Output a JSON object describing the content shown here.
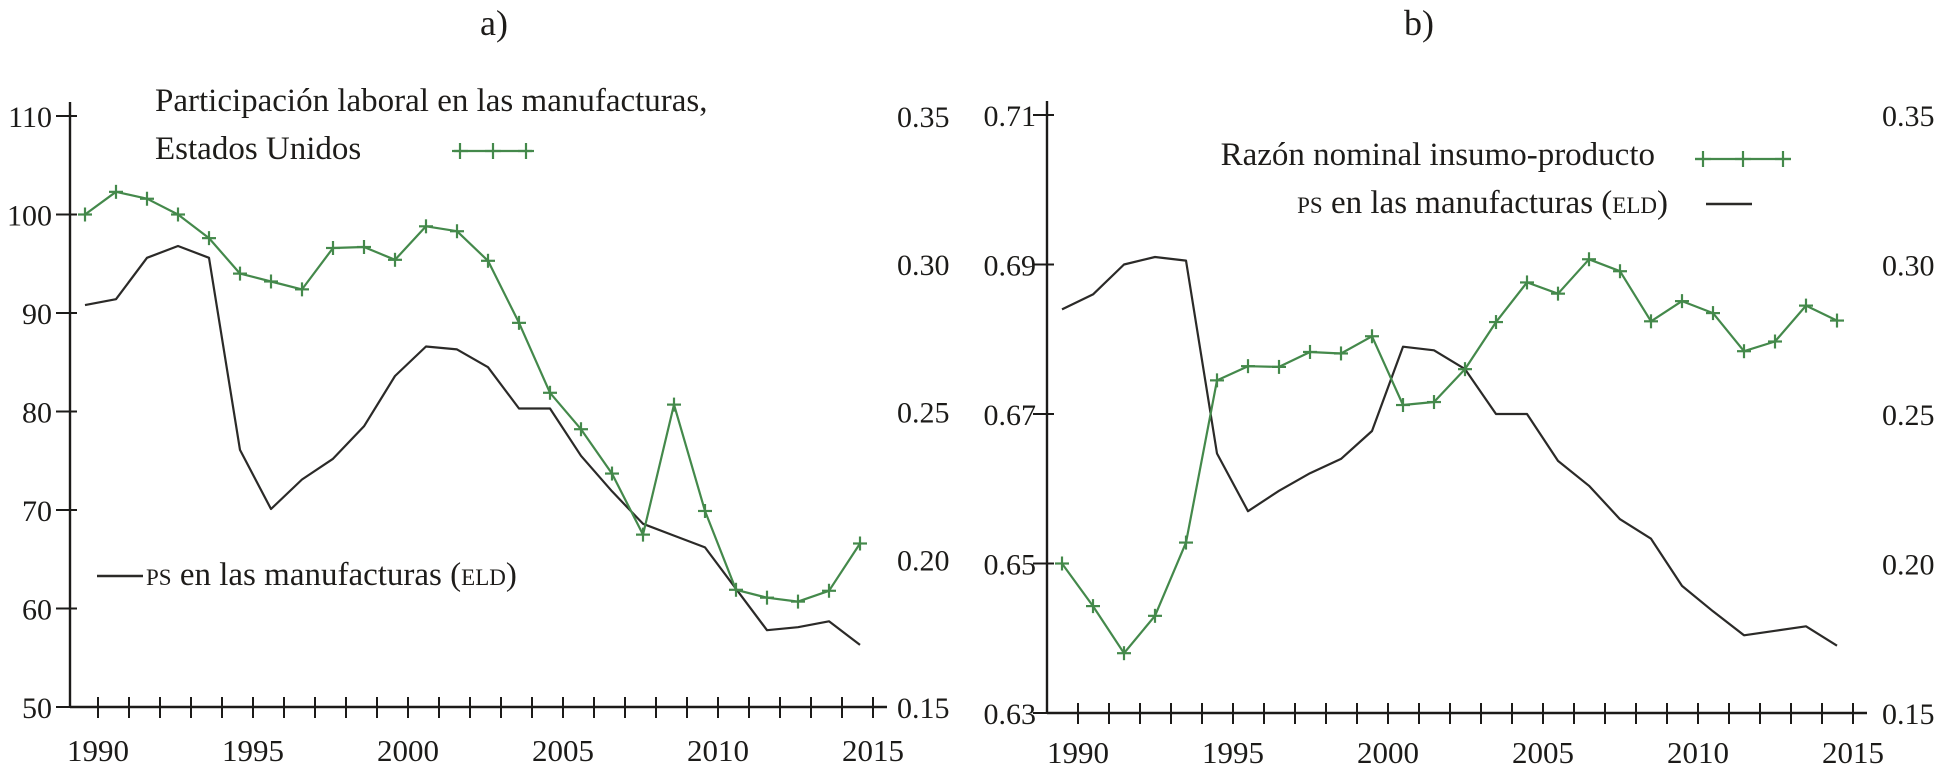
{
  "titles": {
    "panel_a": "a)",
    "panel_b": "b)"
  },
  "colors": {
    "green": "#44894b",
    "black": "#2b2a28",
    "axis": "#1c1b19"
  },
  "legends": {
    "panel_a": {
      "line1": "Participación laboral en las manufacturas,",
      "line2": "Estados Unidos",
      "ps_sc1": "ps",
      "ps_mid": " en las manufacturas (",
      "ps_sc2": "eld",
      "ps_end": ")"
    },
    "panel_b": {
      "line1": "Razón nominal insumo-producto",
      "ps_sc1": "ps",
      "ps_mid": " en las manufacturas (",
      "ps_sc2": "eld",
      "ps_end": ")"
    }
  },
  "chart_data": [
    {
      "id": "a",
      "type": "line",
      "title": "a)",
      "x": [
        1990,
        1991,
        1992,
        1993,
        1994,
        1995,
        1996,
        1997,
        1998,
        1999,
        2000,
        2001,
        2002,
        2003,
        2004,
        2005,
        2006,
        2007,
        2008,
        2009,
        2010,
        2011,
        2012,
        2013,
        2014,
        2015
      ],
      "x_tick_years": [
        1990,
        1995,
        2000,
        2005,
        2010,
        2015
      ],
      "x_tick_labels": [
        "1990",
        "1995",
        "2000",
        "2005",
        "2010",
        "2015"
      ],
      "left_axis": {
        "range": [
          50,
          110
        ],
        "ticks": [
          50,
          60,
          70,
          80,
          90,
          100,
          110
        ],
        "tick_labels": [
          "50",
          "60",
          "70",
          "80",
          "90",
          "100",
          "110"
        ]
      },
      "right_axis": {
        "range": [
          0.15,
          0.35
        ],
        "ticks": [
          0.15,
          0.2,
          0.25,
          0.3,
          0.35
        ],
        "tick_labels": [
          "0.15",
          "0.20",
          "0.25",
          "0.30",
          "0.35"
        ]
      },
      "grid": false,
      "series": [
        {
          "name": "PS en las manufacturas (ELD)",
          "axis": "right",
          "color": "black",
          "marker": "none",
          "values": [
            0.286,
            0.288,
            0.302,
            0.306,
            0.302,
            0.237,
            0.217,
            0.227,
            0.234,
            0.245,
            0.262,
            0.272,
            0.271,
            0.265,
            0.251,
            0.251,
            0.235,
            0.223,
            0.212,
            0.208,
            0.204,
            0.19,
            0.176,
            0.177,
            0.179,
            0.171
          ]
        },
        {
          "name": "Participación laboral en las manufacturas, Estados Unidos",
          "axis": "left",
          "color": "green",
          "marker": "plus",
          "values": [
            100.0,
            102.3,
            101.6,
            100.0,
            97.6,
            94.0,
            93.2,
            92.4,
            96.6,
            96.7,
            95.4,
            98.8,
            98.3,
            95.3,
            89.0,
            81.9,
            78.2,
            73.7,
            67.5,
            80.7,
            69.9,
            61.9,
            61.1,
            60.7,
            61.8,
            66.6
          ]
        }
      ]
    },
    {
      "id": "b",
      "type": "line",
      "title": "b)",
      "x": [
        1990,
        1991,
        1992,
        1993,
        1994,
        1995,
        1996,
        1997,
        1998,
        1999,
        2000,
        2001,
        2002,
        2003,
        2004,
        2005,
        2006,
        2007,
        2008,
        2009,
        2010,
        2011,
        2012,
        2013,
        2014,
        2015
      ],
      "x_tick_years": [
        1990,
        1995,
        2000,
        2005,
        2010,
        2015
      ],
      "x_tick_labels": [
        "1990",
        "1995",
        "2000",
        "2005",
        "2010",
        "2015"
      ],
      "left_axis": {
        "range": [
          0.63,
          0.71
        ],
        "ticks": [
          0.63,
          0.65,
          0.67,
          0.69,
          0.71
        ],
        "tick_labels": [
          "0.63",
          "0.65",
          "0.67",
          "0.69",
          "0.71"
        ]
      },
      "right_axis": {
        "range": [
          0.15,
          0.35
        ],
        "ticks": [
          0.15,
          0.2,
          0.25,
          0.3,
          0.35
        ],
        "tick_labels": [
          "0.15",
          "0.20",
          "0.25",
          "0.30",
          "0.35"
        ]
      },
      "grid": false,
      "series": [
        {
          "name": "PS en las manufacturas (ELD)",
          "axis": "right",
          "color": "black",
          "marker": "none",
          "values": [
            0.285,
            0.29,
            0.3,
            0.3025,
            0.3013,
            0.2368,
            0.2175,
            0.2243,
            0.2302,
            0.235,
            0.2443,
            0.2725,
            0.2713,
            0.265,
            0.25,
            0.25,
            0.2343,
            0.226,
            0.2148,
            0.2083,
            0.1925,
            0.184,
            0.176,
            0.1775,
            0.179,
            0.1725
          ]
        },
        {
          "name": "Razón nominal insumo-producto",
          "axis": "left",
          "color": "green",
          "marker": "plus",
          "values": [
            0.65,
            0.6443,
            0.638,
            0.643,
            0.6528,
            0.6745,
            0.6764,
            0.6763,
            0.6783,
            0.6781,
            0.6804,
            0.6712,
            0.6716,
            0.676,
            0.6823,
            0.6876,
            0.6861,
            0.6907,
            0.6891,
            0.6824,
            0.6851,
            0.6835,
            0.6784,
            0.6797,
            0.6845,
            0.6825
          ]
        }
      ]
    }
  ]
}
